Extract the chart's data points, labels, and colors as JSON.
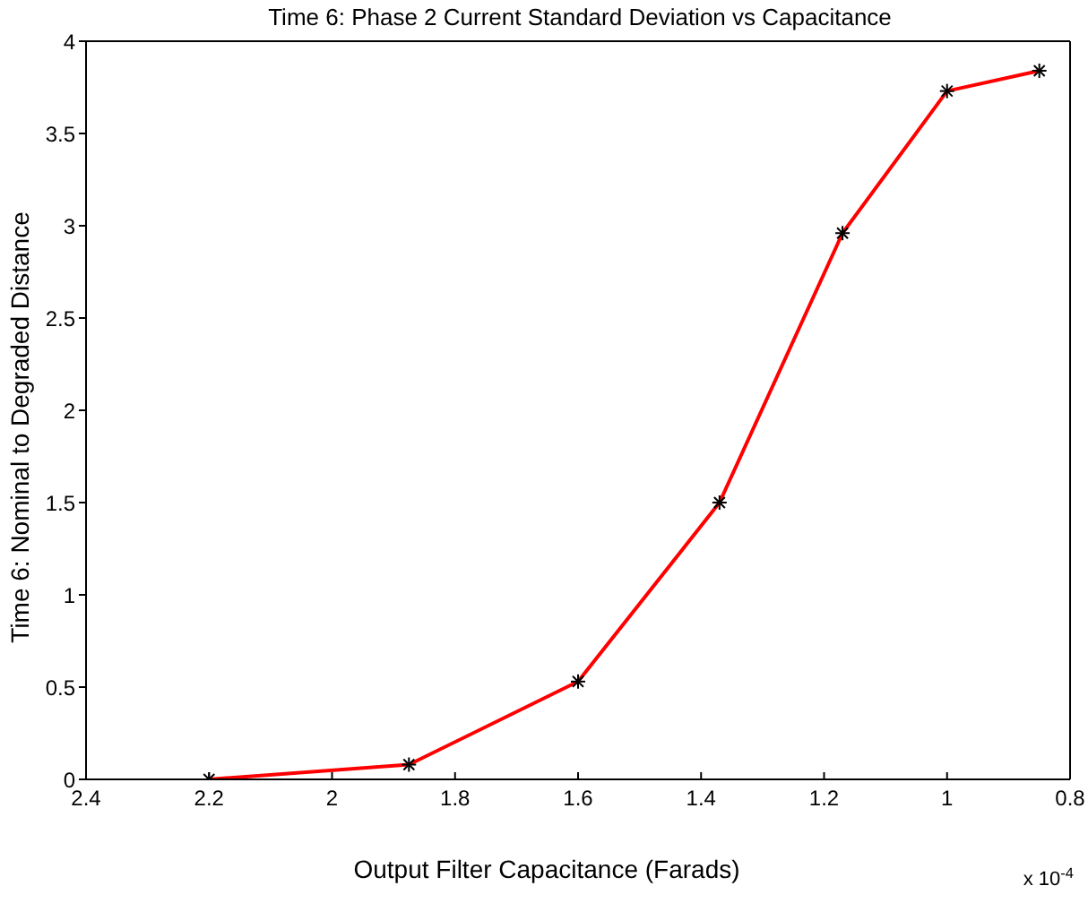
{
  "chart_data": {
    "type": "line",
    "title": "Time  6: Phase 2 Current Standard Deviation vs Capacitance",
    "xlabel": "Output Filter Capacitance (Farads)",
    "ylabel": "Time  6: Nominal to Degraded Distance",
    "annotations": [
      "x 10$^{-4}$"
    ],
    "x": [
      2.2,
      1.875,
      1.6,
      1.37,
      1.17,
      1.0,
      0.85
    ],
    "series": [
      {
        "color": "#ff0000",
        "values": [
          0,
          0.08,
          0.53,
          1.5,
          2.96,
          3.73,
          3.84
        ]
      }
    ],
    "xlim": [
      2.4,
      0.8
    ],
    "xticks": [
      2.4,
      2.2,
      2,
      1.8,
      1.6,
      1.4,
      1.2,
      1,
      0.8
    ],
    "ylim": [
      0,
      4
    ],
    "yticks": [
      0,
      0.5,
      1,
      1.5,
      2,
      2.5,
      3,
      3.5,
      4
    ],
    "grid": false,
    "legend": false,
    "marker": "cross",
    "line_style": "solid"
  }
}
